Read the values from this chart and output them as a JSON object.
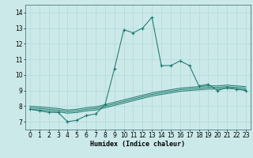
{
  "title": "",
  "xlabel": "Humidex (Indice chaleur)",
  "xlim": [
    -0.5,
    23.5
  ],
  "ylim": [
    6.5,
    14.5
  ],
  "xticks": [
    0,
    1,
    2,
    3,
    4,
    5,
    6,
    7,
    8,
    9,
    10,
    11,
    12,
    13,
    14,
    15,
    16,
    17,
    18,
    19,
    20,
    21,
    22,
    23
  ],
  "yticks": [
    7,
    8,
    9,
    10,
    11,
    12,
    13,
    14
  ],
  "bg_color": "#cce9e9",
  "line_color": "#1a7a6e",
  "grid_color": "#b0d8d8",
  "lines": [
    {
      "x": [
        0,
        1,
        2,
        3,
        4,
        5,
        6,
        7,
        8,
        9,
        10,
        11,
        12,
        13,
        14,
        15,
        16,
        17,
        18,
        19,
        20,
        21,
        22,
        23
      ],
      "y": [
        7.8,
        7.7,
        7.6,
        7.6,
        7.0,
        7.1,
        7.4,
        7.5,
        8.1,
        10.4,
        12.9,
        12.7,
        13.0,
        13.7,
        10.6,
        10.6,
        10.9,
        10.6,
        9.3,
        9.4,
        9.0,
        9.2,
        9.1,
        9.0
      ],
      "marker": "+"
    },
    {
      "x": [
        0,
        1,
        2,
        3,
        4,
        5,
        6,
        7,
        8,
        9,
        10,
        11,
        12,
        13,
        14,
        15,
        16,
        17,
        18,
        19,
        20,
        21,
        22,
        23
      ],
      "y": [
        7.8,
        7.75,
        7.7,
        7.65,
        7.55,
        7.6,
        7.7,
        7.75,
        7.9,
        8.05,
        8.2,
        8.35,
        8.5,
        8.65,
        8.75,
        8.85,
        8.95,
        9.0,
        9.05,
        9.1,
        9.1,
        9.15,
        9.1,
        9.05
      ],
      "marker": null
    },
    {
      "x": [
        0,
        1,
        2,
        3,
        4,
        5,
        6,
        7,
        8,
        9,
        10,
        11,
        12,
        13,
        14,
        15,
        16,
        17,
        18,
        19,
        20,
        21,
        22,
        23
      ],
      "y": [
        7.9,
        7.85,
        7.8,
        7.75,
        7.65,
        7.7,
        7.8,
        7.85,
        8.0,
        8.15,
        8.3,
        8.45,
        8.6,
        8.75,
        8.85,
        8.95,
        9.05,
        9.1,
        9.15,
        9.2,
        9.2,
        9.25,
        9.2,
        9.15
      ],
      "marker": null
    },
    {
      "x": [
        0,
        1,
        2,
        3,
        4,
        5,
        6,
        7,
        8,
        9,
        10,
        11,
        12,
        13,
        14,
        15,
        16,
        17,
        18,
        19,
        20,
        21,
        22,
        23
      ],
      "y": [
        8.0,
        7.95,
        7.9,
        7.85,
        7.75,
        7.8,
        7.9,
        7.95,
        8.1,
        8.25,
        8.4,
        8.55,
        8.7,
        8.85,
        8.95,
        9.05,
        9.15,
        9.2,
        9.25,
        9.3,
        9.3,
        9.35,
        9.3,
        9.25
      ],
      "marker": null
    }
  ],
  "font_size_label": 6,
  "font_size_tick": 5.5,
  "line_width": 0.75,
  "marker_size": 2.5
}
